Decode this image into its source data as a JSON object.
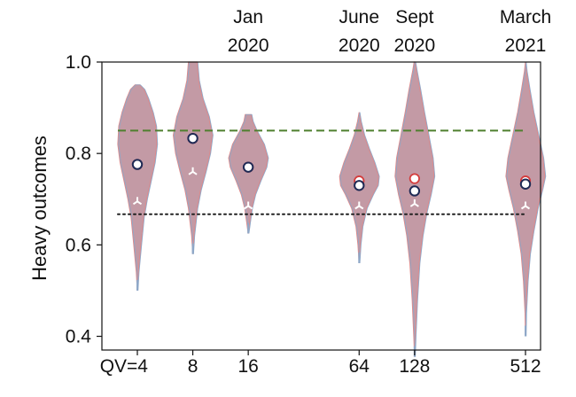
{
  "chart_data": {
    "type": "violin",
    "ylabel": "Heavy outcomes",
    "ylim": [
      0.37,
      1.0
    ],
    "yticks": [
      "0.4",
      "0.6",
      "0.8",
      "1.0"
    ],
    "ytick_values": [
      0.4,
      0.6,
      0.8,
      1.0
    ],
    "x_position_scale": "log2",
    "x_tick_labels": [
      "QV=4",
      "8",
      "16",
      "64",
      "128",
      "512"
    ],
    "categories": [
      4,
      8,
      16,
      64,
      128,
      512
    ],
    "date_annotations": [
      {
        "qv": 16,
        "line1": "Jan",
        "line2": "2020"
      },
      {
        "qv": 64,
        "line1": "June",
        "line2": "2020"
      },
      {
        "qv": 128,
        "line1": "Sept",
        "line2": "2020"
      },
      {
        "qv": 512,
        "line1": "March",
        "line2": "2021"
      }
    ],
    "reference_lines": [
      {
        "y": 0.85,
        "style": "dashed",
        "color": "#4f7f2f"
      },
      {
        "y": 0.667,
        "style": "dotted",
        "color": "#222222"
      }
    ],
    "violins": [
      {
        "qv": 4,
        "min": 0.5,
        "max": 0.95,
        "mean": 0.776,
        "mean_alt": 0.776,
        "median": 0.695,
        "profile": [
          [
            0.5,
            0.0
          ],
          [
            0.54,
            0.05
          ],
          [
            0.6,
            0.18
          ],
          [
            0.66,
            0.32
          ],
          [
            0.7,
            0.48
          ],
          [
            0.74,
            0.68
          ],
          [
            0.78,
            0.88
          ],
          [
            0.82,
            1.0
          ],
          [
            0.86,
            0.95
          ],
          [
            0.89,
            0.78
          ],
          [
            0.92,
            0.55
          ],
          [
            0.94,
            0.35
          ],
          [
            0.95,
            0.12
          ]
        ]
      },
      {
        "qv": 8,
        "min": 0.58,
        "max": 1.0,
        "mean": 0.833,
        "mean_alt": 0.833,
        "median": 0.76,
        "profile": [
          [
            0.58,
            0.0
          ],
          [
            0.62,
            0.06
          ],
          [
            0.68,
            0.22
          ],
          [
            0.72,
            0.4
          ],
          [
            0.76,
            0.65
          ],
          [
            0.8,
            0.88
          ],
          [
            0.84,
            1.0
          ],
          [
            0.88,
            0.82
          ],
          [
            0.92,
            0.5
          ],
          [
            0.96,
            0.3
          ],
          [
            1.0,
            0.22
          ]
        ]
      },
      {
        "qv": 16,
        "min": 0.625,
        "max": 0.885,
        "mean": 0.77,
        "mean_alt": 0.77,
        "median": 0.685,
        "profile": [
          [
            0.625,
            0.0
          ],
          [
            0.65,
            0.08
          ],
          [
            0.68,
            0.18
          ],
          [
            0.71,
            0.35
          ],
          [
            0.74,
            0.62
          ],
          [
            0.77,
            0.92
          ],
          [
            0.79,
            1.0
          ],
          [
            0.82,
            0.8
          ],
          [
            0.85,
            0.42
          ],
          [
            0.87,
            0.22
          ],
          [
            0.885,
            0.15
          ]
        ]
      },
      {
        "qv": 64,
        "min": 0.56,
        "max": 0.89,
        "mean": 0.74,
        "mean_alt": 0.73,
        "median": 0.685,
        "profile": [
          [
            0.56,
            0.0
          ],
          [
            0.6,
            0.06
          ],
          [
            0.64,
            0.16
          ],
          [
            0.68,
            0.38
          ],
          [
            0.71,
            0.7
          ],
          [
            0.73,
            0.95
          ],
          [
            0.75,
            1.0
          ],
          [
            0.78,
            0.78
          ],
          [
            0.81,
            0.5
          ],
          [
            0.84,
            0.25
          ],
          [
            0.87,
            0.08
          ],
          [
            0.89,
            0.0
          ]
        ]
      },
      {
        "qv": 128,
        "min": 0.355,
        "max": 1.0,
        "mean": 0.745,
        "mean_alt": 0.718,
        "median": 0.69,
        "profile": [
          [
            0.355,
            0.0
          ],
          [
            0.4,
            0.04
          ],
          [
            0.48,
            0.12
          ],
          [
            0.56,
            0.24
          ],
          [
            0.62,
            0.4
          ],
          [
            0.67,
            0.6
          ],
          [
            0.71,
            0.82
          ],
          [
            0.75,
            1.0
          ],
          [
            0.79,
            0.92
          ],
          [
            0.84,
            0.7
          ],
          [
            0.89,
            0.48
          ],
          [
            0.94,
            0.28
          ],
          [
            0.98,
            0.1
          ],
          [
            1.0,
            0.02
          ]
        ]
      },
      {
        "qv": 512,
        "min": 0.4,
        "max": 1.0,
        "mean": 0.74,
        "mean_alt": 0.733,
        "median": 0.685,
        "profile": [
          [
            0.4,
            0.0
          ],
          [
            0.45,
            0.02
          ],
          [
            0.52,
            0.1
          ],
          [
            0.58,
            0.22
          ],
          [
            0.63,
            0.4
          ],
          [
            0.68,
            0.62
          ],
          [
            0.72,
            0.85
          ],
          [
            0.75,
            1.0
          ],
          [
            0.79,
            0.9
          ],
          [
            0.84,
            0.65
          ],
          [
            0.89,
            0.4
          ],
          [
            0.94,
            0.2
          ],
          [
            0.98,
            0.05
          ],
          [
            1.0,
            0.0
          ]
        ]
      }
    ],
    "colors": {
      "violin_fill": "#b88895",
      "violin_stroke_blue": "#8fa8c8",
      "violin_stroke_red": "#e08a8a",
      "mean_marker_edge": "#1f2a55",
      "mean_alt_edge": "#d43d3d",
      "median_marker": "#ffffff"
    }
  }
}
